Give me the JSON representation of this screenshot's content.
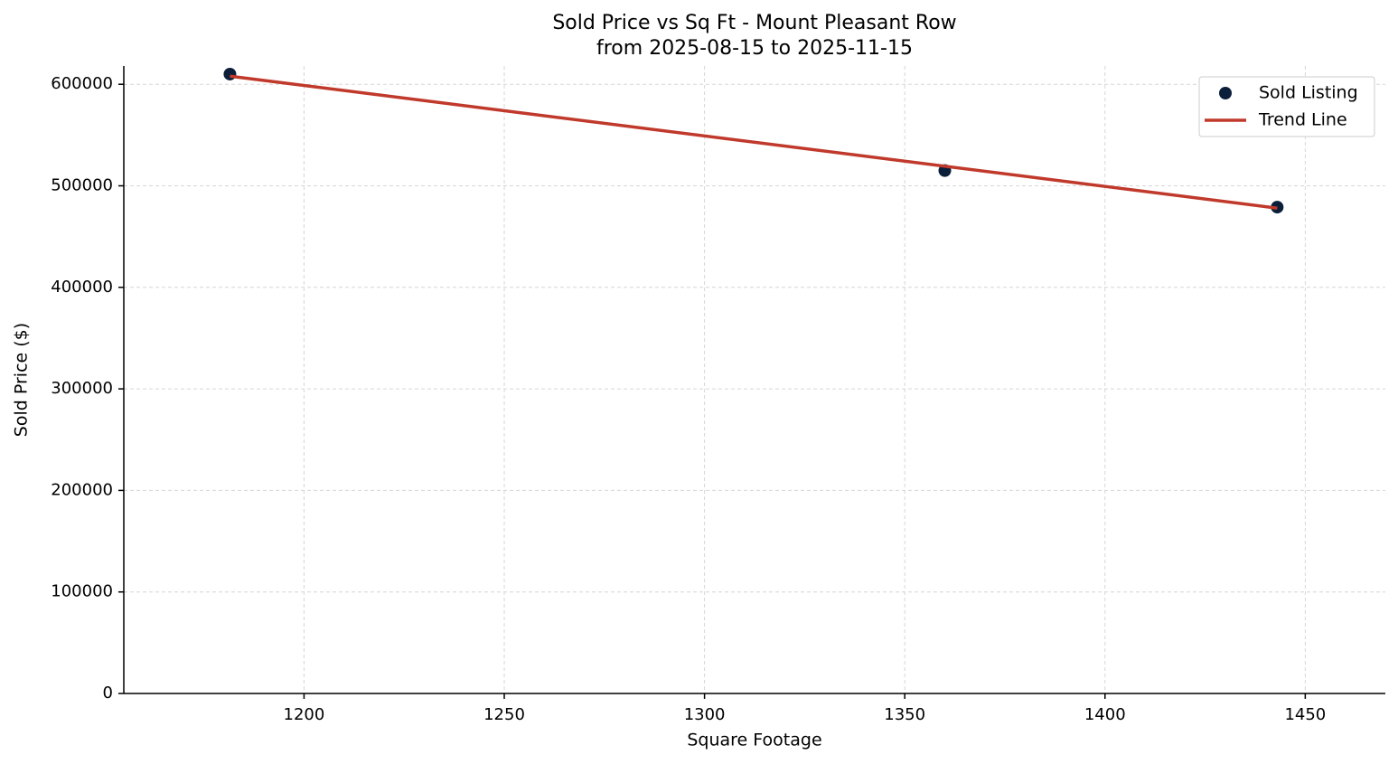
{
  "chart_data": {
    "type": "scatter",
    "title": "Sold Price vs Sq Ft - Mount Pleasant Row",
    "subtitle": "from 2025-08-15 to 2025-11-15",
    "x_label": "Square Footage",
    "y_label": "Sold Price ($)",
    "series": [
      {
        "name": "Sold Listing",
        "type": "scatter",
        "color": "#0b1f3a",
        "x": [
          1181.5,
          1360,
          1443
        ],
        "values": [
          610000,
          515000,
          479000
        ]
      },
      {
        "name": "Trend Line",
        "type": "line",
        "color": "#c0392b",
        "x": [
          1181.5,
          1443
        ],
        "values": [
          608000,
          478000
        ]
      }
    ],
    "xlim": [
      1155,
      1470
    ],
    "ylim": [
      0,
      618000
    ],
    "xticks": [
      1200,
      1250,
      1300,
      1350,
      1400,
      1450
    ],
    "yticks": [
      0,
      100000,
      200000,
      300000,
      400000,
      500000,
      600000
    ],
    "grid": true,
    "legend": "upper right"
  }
}
